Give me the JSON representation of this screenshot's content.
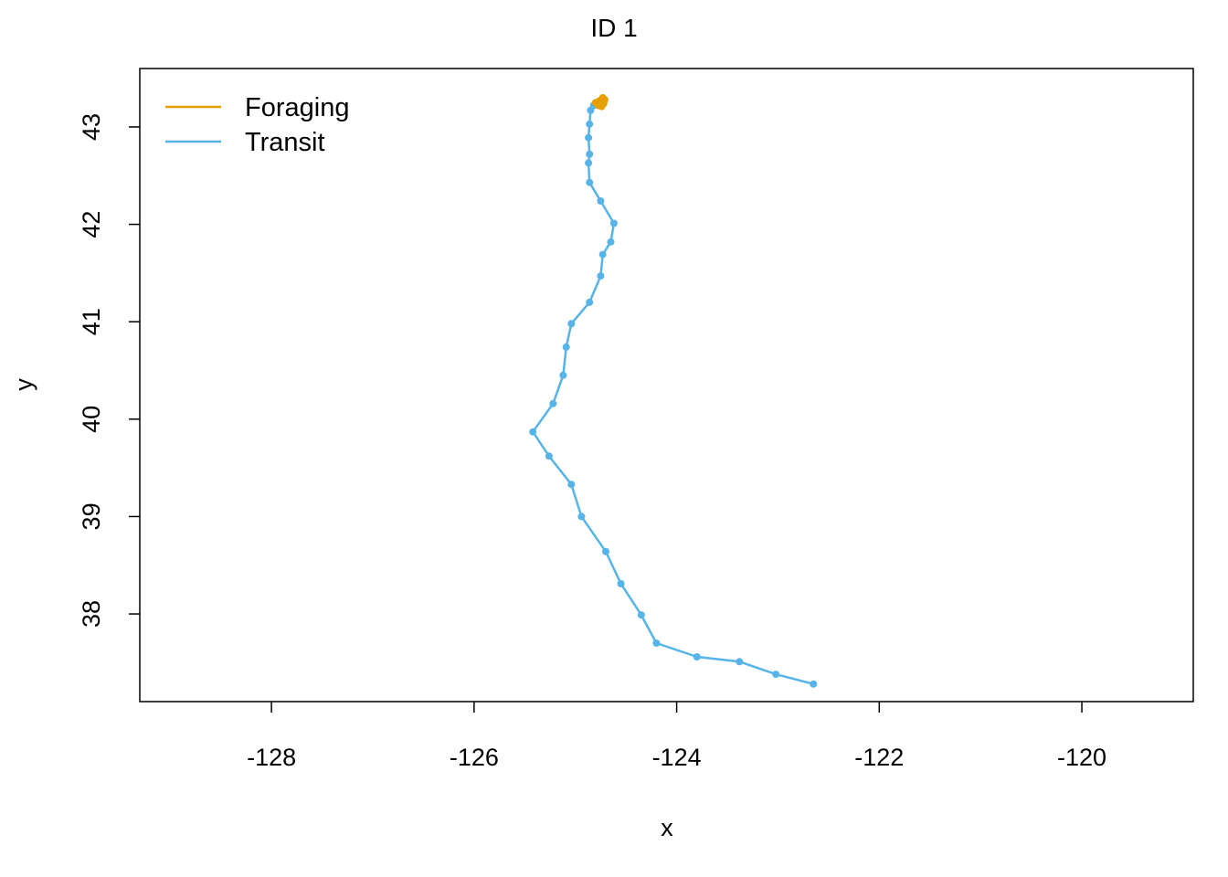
{
  "chart_data": {
    "type": "line",
    "title": "ID 1",
    "xlabel": "x",
    "ylabel": "y",
    "xlim": [
      -129.3,
      -118.9
    ],
    "ylim": [
      37.1,
      43.6
    ],
    "x_ticks": [
      -128,
      -126,
      -124,
      -122,
      -120
    ],
    "y_ticks": [
      38,
      39,
      40,
      41,
      42,
      43
    ],
    "x_tick_labels": [
      "-128",
      "-126",
      "-124",
      "-122",
      "-120"
    ],
    "y_tick_labels": [
      "38",
      "39",
      "40",
      "41",
      "42",
      "43"
    ],
    "grid": false,
    "legend": {
      "position": "top-left",
      "entries": [
        {
          "label": "Foraging",
          "color": "#E69F00"
        },
        {
          "label": "Transit",
          "color": "#56B4E9"
        }
      ]
    },
    "series": [
      {
        "name": "Transit",
        "color": "#56B4E9",
        "x": [
          -122.65,
          -123.02,
          -123.38,
          -123.8,
          -124.2,
          -124.35,
          -124.55,
          -124.7,
          -124.94,
          -125.04,
          -125.26,
          -125.42,
          -125.22,
          -125.12,
          -125.09,
          -125.04,
          -124.86,
          -124.75,
          -124.73,
          -124.65,
          -124.62,
          -124.75,
          -124.86,
          -124.87,
          -124.86,
          -124.87,
          -124.86,
          -124.85,
          -124.82,
          -124.78,
          -124.75
        ],
        "y": [
          37.28,
          37.38,
          37.51,
          37.56,
          37.7,
          37.99,
          38.31,
          38.64,
          39.0,
          39.33,
          39.62,
          39.87,
          40.16,
          40.45,
          40.74,
          40.98,
          41.2,
          41.47,
          41.69,
          41.82,
          42.01,
          42.24,
          42.43,
          42.63,
          42.72,
          42.89,
          43.03,
          43.17,
          43.22,
          43.23,
          43.25
        ]
      },
      {
        "name": "Foraging",
        "color": "#E69F00",
        "x": [
          -124.8,
          -124.77,
          -124.74,
          -124.72,
          -124.71,
          -124.73,
          -124.76,
          -124.78,
          -124.75,
          -124.72
        ],
        "y": [
          43.25,
          43.22,
          43.21,
          43.24,
          43.28,
          43.3,
          43.27,
          43.23,
          43.22,
          43.26
        ]
      }
    ]
  }
}
